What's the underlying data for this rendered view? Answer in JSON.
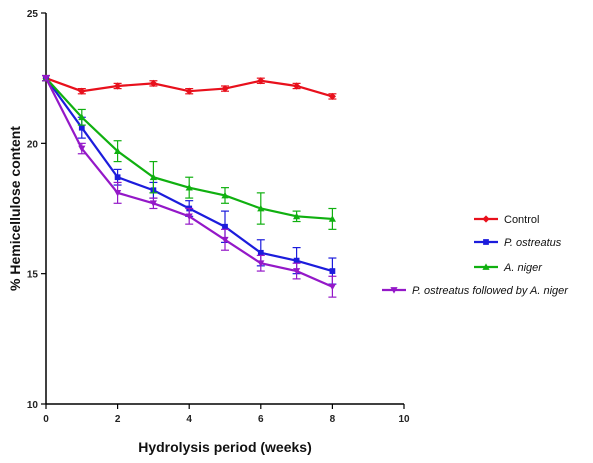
{
  "chart_data": {
    "type": "line",
    "xlabel": "Hydrolysis period (weeks)",
    "ylabel": "% Hemicellulose content",
    "xlim": [
      0,
      10
    ],
    "ylim": [
      10,
      25
    ],
    "xticks": [
      0,
      2,
      4,
      6,
      8,
      10
    ],
    "yticks": [
      10,
      15,
      20,
      25
    ],
    "x_tick_labels": [
      "0",
      "2",
      "4",
      "6",
      "8",
      "10"
    ],
    "y_tick_labels": [
      "10",
      "15",
      "20",
      "25"
    ],
    "grid": false,
    "legend_position": "right",
    "x": [
      0,
      1,
      2,
      3,
      4,
      5,
      6,
      7,
      8
    ],
    "series": [
      {
        "name": "Control",
        "legend_parts": [
          {
            "text": "Control",
            "italic": false
          }
        ],
        "color": "#e8101c",
        "marker": "diamond",
        "values": [
          22.5,
          22.0,
          22.2,
          22.3,
          22.0,
          22.1,
          22.4,
          22.2,
          21.8
        ],
        "errors": [
          0.1,
          0.1,
          0.1,
          0.1,
          0.1,
          0.1,
          0.1,
          0.1,
          0.1
        ]
      },
      {
        "name": "P. ostreatus",
        "legend_parts": [
          {
            "text": "P. ostreatus",
            "italic": true
          }
        ],
        "color": "#1c1cdc",
        "marker": "square",
        "values": [
          22.5,
          20.6,
          18.7,
          18.2,
          17.5,
          16.8,
          15.8,
          15.5,
          15.1
        ],
        "errors": [
          0.1,
          0.4,
          0.3,
          0.3,
          0.3,
          0.6,
          0.5,
          0.5,
          0.5
        ]
      },
      {
        "name": "A. niger",
        "legend_parts": [
          {
            "text": "A. niger",
            "italic": true
          }
        ],
        "color": "#10b010",
        "marker": "triangle-up",
        "values": [
          22.5,
          21.0,
          19.7,
          18.7,
          18.3,
          18.0,
          17.5,
          17.2,
          17.1
        ],
        "errors": [
          0.1,
          0.3,
          0.4,
          0.6,
          0.4,
          0.3,
          0.6,
          0.2,
          0.4
        ]
      },
      {
        "name": "P. ostreatus followed by A. niger",
        "legend_parts": [
          {
            "text": "P. ostreatus",
            "italic": true
          },
          {
            "text": " followed by ",
            "italic": true
          },
          {
            "text": "A. niger",
            "italic": true
          }
        ],
        "color": "#9418c8",
        "marker": "triangle-down",
        "values": [
          22.5,
          19.8,
          18.1,
          17.7,
          17.2,
          16.3,
          15.4,
          15.1,
          14.5
        ],
        "errors": [
          0.1,
          0.2,
          0.4,
          0.2,
          0.3,
          0.4,
          0.3,
          0.3,
          0.4
        ]
      }
    ]
  }
}
